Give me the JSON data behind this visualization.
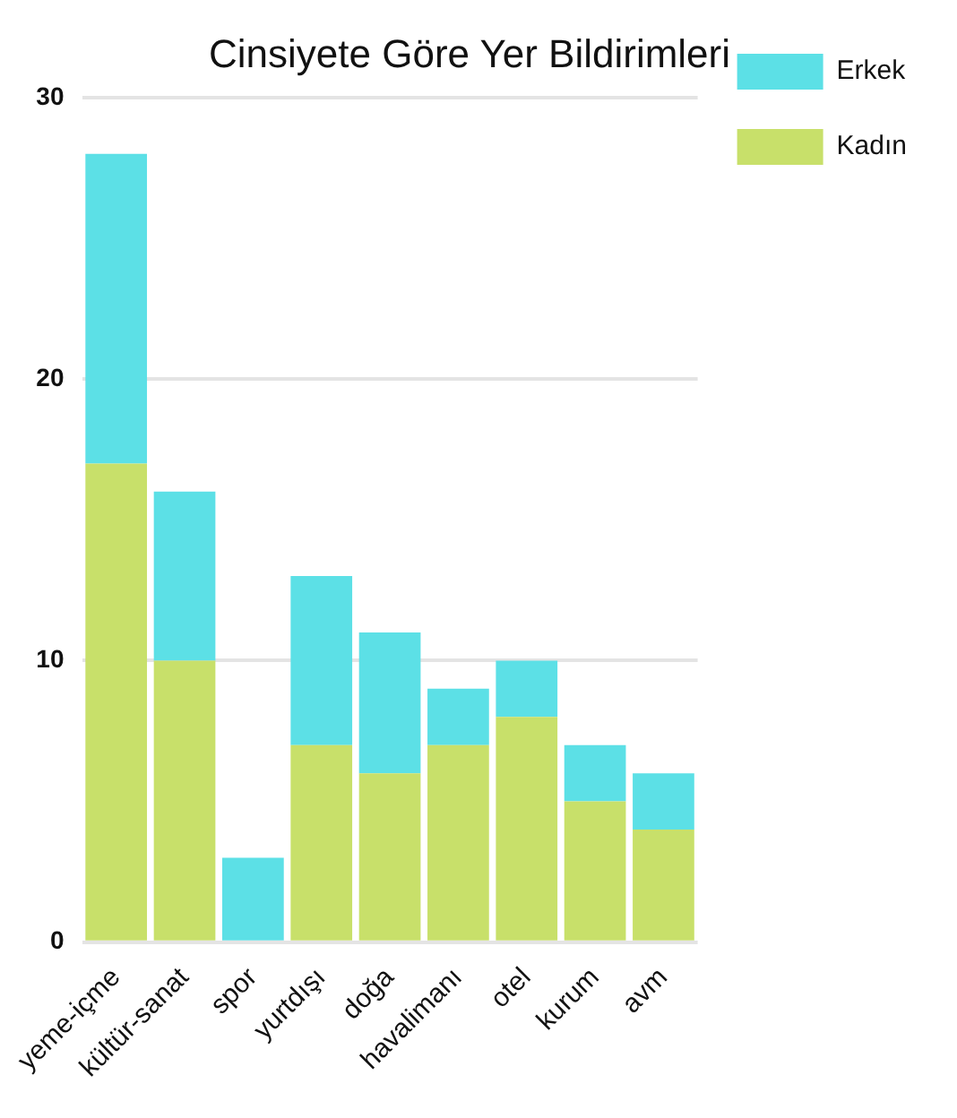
{
  "chart_data": {
    "type": "bar",
    "title": "Cinsiyete Göre Yer Bildirimleri",
    "categories": [
      "yeme-içme",
      "kültür-sanat",
      "spor",
      "yurtdışı",
      "doğa",
      "havalimanı",
      "otel",
      "kurum",
      "avm"
    ],
    "series": [
      {
        "name": "Kadın",
        "color": "#c8e06a",
        "values": [
          17,
          10,
          0,
          7,
          6,
          7,
          8,
          5,
          4
        ]
      },
      {
        "name": "Erkek",
        "color": "#5ce0e6",
        "values": [
          11,
          6,
          3,
          6,
          5,
          2,
          2,
          2,
          2
        ]
      }
    ],
    "stacked": true,
    "ylim": [
      0,
      30
    ],
    "yticks": [
      0,
      10,
      20,
      30
    ],
    "grid": "y",
    "legend": "top right"
  }
}
